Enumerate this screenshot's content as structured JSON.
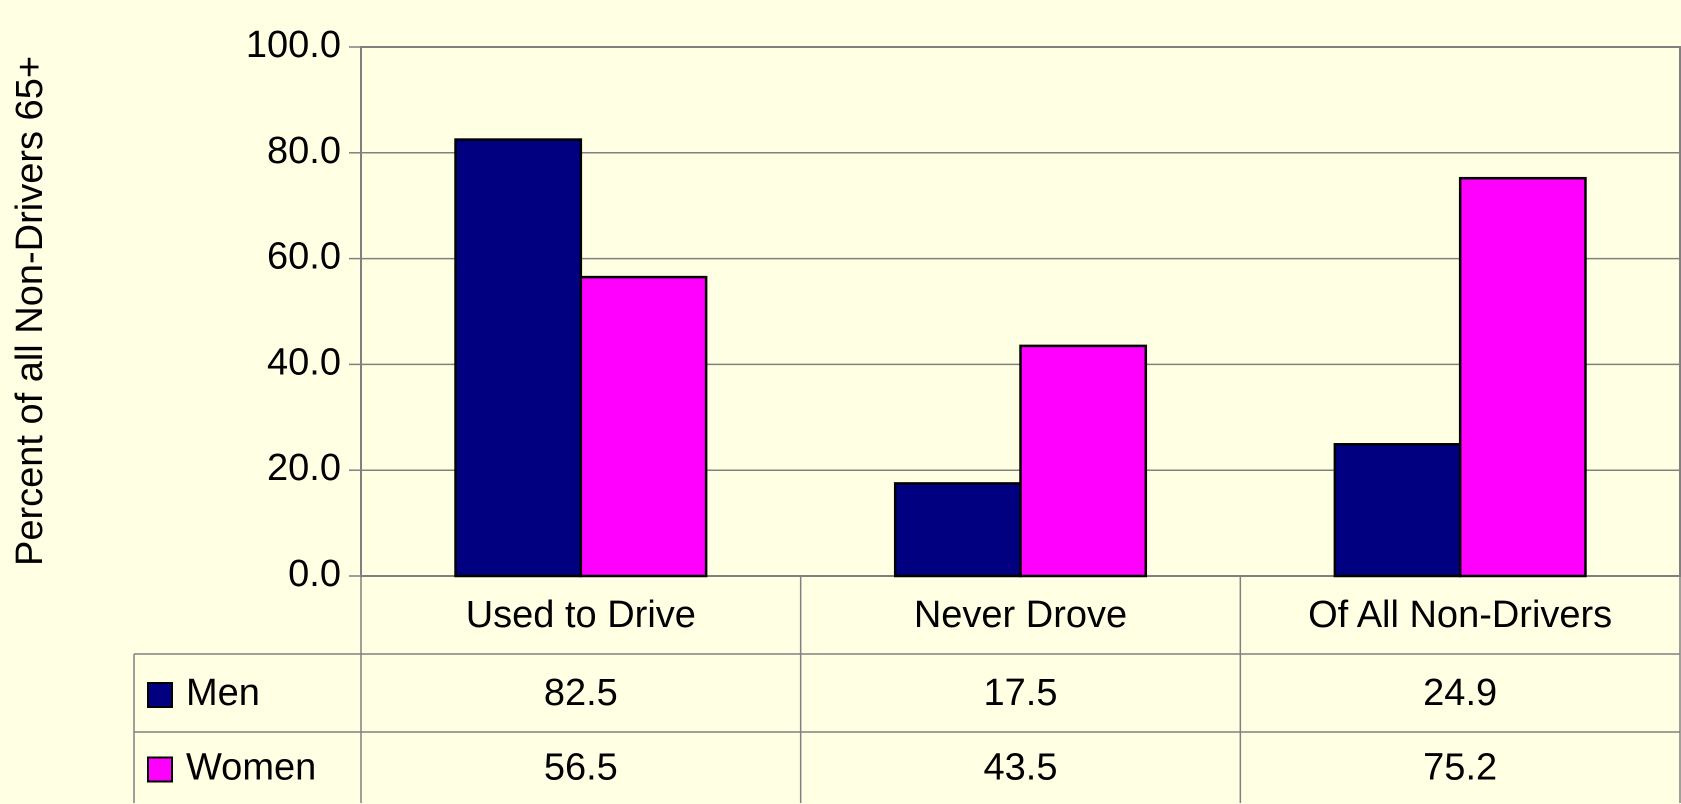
{
  "chart_data": {
    "type": "bar",
    "y_label": "Percent of all Non-Drivers 65+",
    "categories": [
      "Used to Drive",
      "Never Drove",
      "Of All Non-Drivers"
    ],
    "series": [
      {
        "name": "Men",
        "color": "#000080",
        "values": [
          82.5,
          17.5,
          24.9
        ]
      },
      {
        "name": "Women",
        "color": "#ff00ff",
        "values": [
          56.5,
          43.5,
          75.2
        ]
      }
    ],
    "ylim": [
      0,
      100
    ],
    "yticks": [
      {
        "value": 0,
        "label": "0.0"
      },
      {
        "value": 20,
        "label": "20.0"
      },
      {
        "value": 40,
        "label": "40.0"
      },
      {
        "value": 60,
        "label": "60.0"
      },
      {
        "value": 80,
        "label": "80.0"
      },
      {
        "value": 100,
        "label": "100.0"
      }
    ],
    "grid": true
  }
}
